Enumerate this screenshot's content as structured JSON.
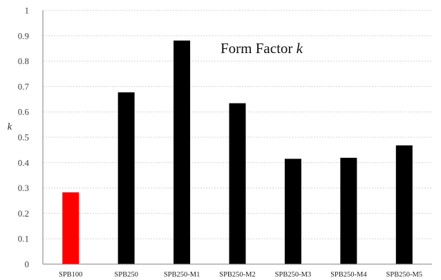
{
  "chart_data": {
    "type": "bar",
    "title_prefix": "Form Factor ",
    "title_var": "k",
    "ylabel": "k",
    "xlabel": "",
    "categories": [
      "SPB100",
      "SPB250",
      "SPB250-M1",
      "SPB250-M2",
      "SPB250-M3",
      "SPB250-M4",
      "SPB250-M5"
    ],
    "values": [
      0.283,
      0.677,
      0.881,
      0.634,
      0.415,
      0.419,
      0.468
    ],
    "bar_colors": [
      "#ff0000",
      "#000000",
      "#000000",
      "#000000",
      "#000000",
      "#000000",
      "#000000"
    ],
    "ylim": [
      0,
      1
    ],
    "yticks": [
      0,
      0.1,
      0.2,
      0.3,
      0.4,
      0.5,
      0.6,
      0.7,
      0.8,
      0.9,
      1
    ],
    "ytick_labels": [
      "0",
      "0.1",
      "0.2",
      "0.3",
      "0.4",
      "0.5",
      "0.6",
      "0.7",
      "0.8",
      "0.9",
      "1"
    ],
    "grid": true,
    "grid_color": "#d0d0d0",
    "axis_color": "#7f7f7f"
  }
}
